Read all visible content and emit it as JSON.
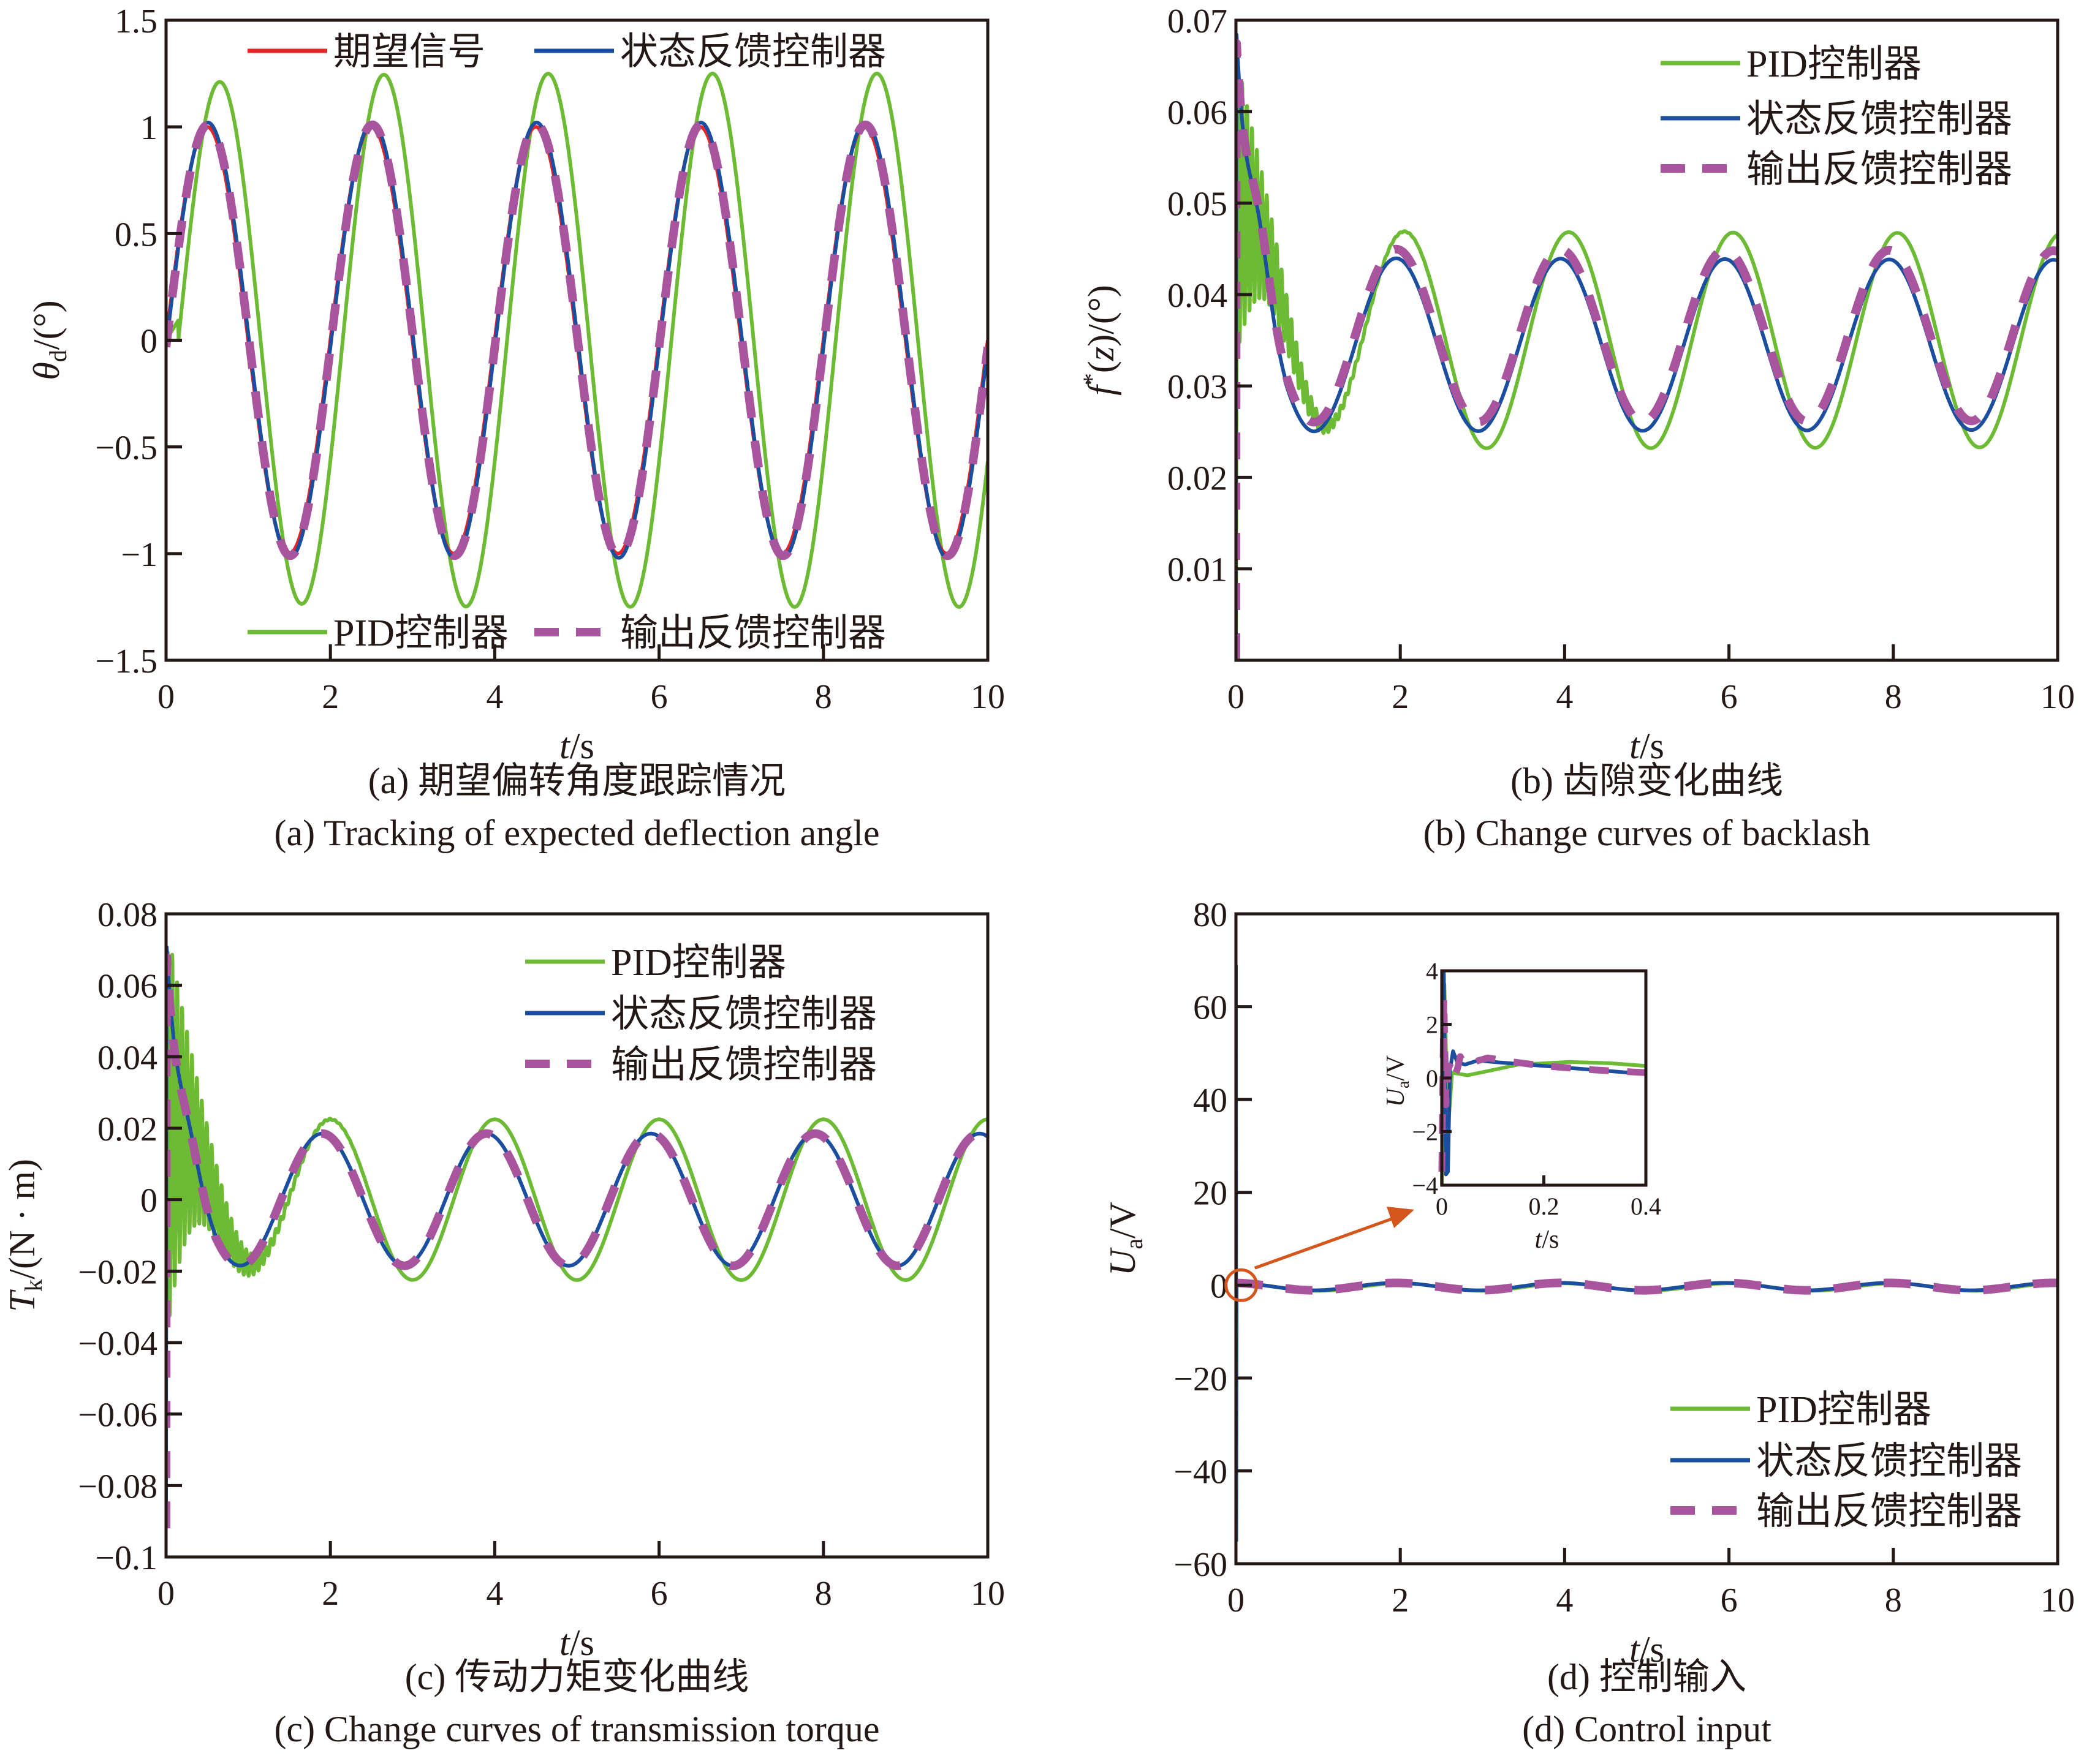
{
  "colors": {
    "desired": "#e3262a",
    "pid": "#6dbb35",
    "state_feedback": "#1c4ea0",
    "output_feedback": "#a8559e",
    "axis": "#231815",
    "annotation": "#d4561c"
  },
  "legend_labels": {
    "desired": "期望信号",
    "pid": "PID控制器",
    "state_feedback": "状态反馈控制器",
    "output_feedback": "输出反馈控制器"
  },
  "chart_data": [
    {
      "id": "a",
      "type": "line",
      "caption_cn": "(a) 期望偏转角度跟踪情况",
      "caption_en": "(a) Tracking of expected deflection angle",
      "xlabel": "t/s",
      "ylabel": "θd/(°)",
      "ylabel_main": "θ",
      "ylabel_sub": "d",
      "ylabel_rest": "/(°)",
      "xlim": [
        0,
        10
      ],
      "ylim": [
        -1.5,
        1.5
      ],
      "xticks": [
        0,
        2,
        4,
        6,
        8,
        10
      ],
      "xtick_labels": [
        "0",
        "2",
        "4",
        "6",
        "8",
        "10"
      ],
      "yticks": [
        -1.5,
        -1,
        -0.5,
        0,
        0.5,
        1,
        1.5
      ],
      "ytick_labels": [
        "−1.5",
        "−1",
        "−0.5",
        "0",
        "0.5",
        "1",
        "1.5"
      ],
      "grid": false,
      "legend_placement": "top and bottom rows inside axes",
      "legend_rows": [
        [
          "desired",
          "state_feedback"
        ],
        [
          "pid",
          "output_feedback"
        ]
      ],
      "series": [
        {
          "key": "pid",
          "name": "PID控制器",
          "style": "solid",
          "model": {
            "kind": "sine",
            "amplitude": 1.25,
            "period": 2.0,
            "delay": 0.15,
            "offset": 0,
            "startup_tau": 0.25
          }
        },
        {
          "key": "desired",
          "name": "期望信号",
          "style": "solid",
          "model": {
            "kind": "sine",
            "amplitude": 1.0,
            "period": 2.0,
            "delay": 0,
            "offset": 0
          }
        },
        {
          "key": "state_feedback",
          "name": "状态反馈控制器",
          "style": "solid",
          "model": {
            "kind": "sine",
            "amplitude": 1.02,
            "period": 2.0,
            "delay": 0.01,
            "offset": 0
          }
        },
        {
          "key": "output_feedback",
          "name": "输出反馈控制器",
          "style": "dashed",
          "model": {
            "kind": "sine",
            "amplitude": 1.01,
            "period": 2.0,
            "delay": 0.01,
            "offset": 0
          }
        }
      ]
    },
    {
      "id": "b",
      "type": "line",
      "caption_cn": "(b) 齿隙变化曲线",
      "caption_en": "(b) Change curves of backlash",
      "xlabel": "t/s",
      "ylabel": "f*(z)/(°)",
      "ylabel_main": "f",
      "ylabel_sup": "*",
      "ylabel_rest": "(z)/(°)",
      "xlim": [
        0,
        10
      ],
      "ylim": [
        0,
        0.07
      ],
      "xticks": [
        0,
        2,
        4,
        6,
        8,
        10
      ],
      "xtick_labels": [
        "0",
        "2",
        "4",
        "6",
        "8",
        "10"
      ],
      "yticks": [
        0.01,
        0.02,
        0.03,
        0.04,
        0.05,
        0.06,
        0.07
      ],
      "ytick_labels": [
        "0.01",
        "0.02",
        "0.03",
        "0.04",
        "0.05",
        "0.06",
        "0.07"
      ],
      "grid": false,
      "legend_placement": "top-right",
      "legend_rows": [
        [
          "pid"
        ],
        [
          "state_feedback"
        ],
        [
          "output_feedback"
        ]
      ],
      "series": [
        {
          "key": "pid",
          "name": "PID控制器",
          "style": "solid",
          "model": {
            "kind": "damped_osc_then_sine",
            "offset": 0.035,
            "amplitude_start": 0.0119,
            "amplitude_end": 0.0117,
            "period": 2.0,
            "peak_time": 2.05,
            "initial": 0.05,
            "hf_amplitude": 0.017,
            "hf_period": 0.06,
            "hf_decay": 0.35,
            "rise_time": 0.015
          }
        },
        {
          "key": "state_feedback",
          "name": "状态反馈控制器",
          "style": "solid",
          "model": {
            "kind": "spike_then_sine",
            "offset": 0.0345,
            "amplitude_start": 0.0095,
            "amplitude_end": 0.0093,
            "period": 2.0,
            "peak_time": 1.95,
            "spike_peak": 0.069,
            "spike_time": 0.005,
            "decay": 0.12
          }
        },
        {
          "key": "output_feedback",
          "name": "输出反馈控制器",
          "style": "dashed",
          "model": {
            "kind": "spike_then_sine",
            "offset": 0.0355,
            "amplitude_start": 0.0095,
            "amplitude_end": 0.0093,
            "period": 2.0,
            "peak_time": 1.95,
            "spike_peak": 0.068,
            "spike_time": 0.005,
            "decay": 0.12
          }
        }
      ]
    },
    {
      "id": "c",
      "type": "line",
      "caption_cn": "(c) 传动力矩变化曲线",
      "caption_en": "(c) Change curves of transmission torque",
      "xlabel": "t/s",
      "ylabel": "Tk/(N·m)",
      "ylabel_main": "T",
      "ylabel_sub": "k",
      "ylabel_rest": "/(N · m)",
      "xlim": [
        0,
        10
      ],
      "ylim": [
        -0.1,
        0.08
      ],
      "xticks": [
        0,
        2,
        4,
        6,
        8,
        10
      ],
      "xtick_labels": [
        "0",
        "2",
        "4",
        "6",
        "8",
        "10"
      ],
      "yticks": [
        -0.1,
        -0.08,
        -0.06,
        -0.04,
        -0.02,
        0,
        0.02,
        0.04,
        0.06,
        0.08
      ],
      "ytick_labels": [
        "−0.1",
        "−0.08",
        "−0.06",
        "−0.04",
        "−0.02",
        "0",
        "0.02",
        "0.04",
        "0.06",
        "0.08"
      ],
      "grid": false,
      "legend_placement": "top-right",
      "legend_rows": [
        [
          "pid"
        ],
        [
          "state_feedback"
        ],
        [
          "output_feedback"
        ]
      ],
      "series": [
        {
          "key": "pid",
          "name": "PID控制器",
          "style": "solid",
          "model": {
            "kind": "damped_osc_then_sine",
            "offset": 0,
            "amplitude_start": 0.0225,
            "amplitude_end": 0.0225,
            "period": 2.0,
            "peak_time": 2.0,
            "initial": 0.02,
            "hf_amplitude": 0.06,
            "hf_period": 0.06,
            "hf_decay": 0.35,
            "rise_time": 0.02
          }
        },
        {
          "key": "state_feedback",
          "name": "状态反馈控制器",
          "style": "solid",
          "model": {
            "kind": "spike_then_sine",
            "offset": 0,
            "amplitude_start": 0.0185,
            "amplitude_end": 0.0185,
            "period": 2.0,
            "peak_time": 1.9,
            "spike_peak": 0.072,
            "spike_min": -0.09,
            "spike_time": 0.005,
            "decay": 0.12
          }
        },
        {
          "key": "output_feedback",
          "name": "输出反馈控制器",
          "style": "dashed",
          "model": {
            "kind": "spike_then_sine",
            "offset": 0,
            "amplitude_start": 0.0185,
            "amplitude_end": 0.0185,
            "period": 2.0,
            "peak_time": 1.9,
            "spike_peak": 0.069,
            "spike_min": -0.092,
            "spike_time": 0.005,
            "decay": 0.12
          }
        }
      ]
    },
    {
      "id": "d",
      "type": "line",
      "caption_cn": "(d) 控制输入",
      "caption_en": "(d) Control input",
      "xlabel": "t/s",
      "ylabel": "Ua/V",
      "ylabel_main": "U",
      "ylabel_sub": "a",
      "ylabel_rest": "/V",
      "xlim": [
        0,
        10
      ],
      "ylim": [
        -60,
        80
      ],
      "xticks": [
        0,
        2,
        4,
        6,
        8,
        10
      ],
      "xtick_labels": [
        "0",
        "2",
        "4",
        "6",
        "8",
        "10"
      ],
      "yticks": [
        -60,
        -40,
        -20,
        0,
        20,
        40,
        60,
        80
      ],
      "ytick_labels": [
        "−60",
        "−40",
        "−20",
        "0",
        "20",
        "40",
        "60",
        "80"
      ],
      "grid": false,
      "legend_placement": "bottom-right",
      "legend_rows": [
        [
          "pid"
        ],
        [
          "state_feedback"
        ],
        [
          "output_feedback"
        ]
      ],
      "series": [
        {
          "key": "pid",
          "name": "PID控制器",
          "style": "solid",
          "model": {
            "kind": "small_sine",
            "offset": -0.4,
            "amplitude": 0.8,
            "period": 2.0,
            "peak_time": 2.0
          }
        },
        {
          "key": "state_feedback",
          "name": "状态反馈控制器",
          "style": "solid",
          "model": {
            "kind": "spike_small_sine",
            "offset": -0.3,
            "amplitude": 0.8,
            "period": 2.0,
            "peak_time": 1.95,
            "spike_max": 69,
            "spike_min": -55
          }
        },
        {
          "key": "output_feedback",
          "name": "输出反馈控制器",
          "style": "dashed",
          "model": {
            "kind": "small_sine",
            "offset": -0.3,
            "amplitude": 0.8,
            "period": 2.0,
            "peak_time": 1.95
          }
        }
      ],
      "annotation": {
        "type": "circle-with-arrow",
        "circle_center": [
          0.05,
          0
        ],
        "target": "inset"
      },
      "inset": {
        "xlabel": "t/s",
        "ylabel": "Ua/V",
        "ylabel_main": "U",
        "ylabel_sub": "a",
        "ylabel_rest": "/V",
        "xlim": [
          0,
          0.4
        ],
        "ylim": [
          -4,
          4
        ],
        "xticks": [
          0,
          0.2,
          0.4
        ],
        "xtick_labels": [
          "0",
          "0.2",
          "0.4"
        ],
        "yticks": [
          -4,
          -2,
          0,
          2,
          4
        ],
        "ytick_labels": [
          "−4",
          "−2",
          "0",
          "2",
          "4"
        ],
        "series": [
          {
            "key": "pid",
            "points": [
              [
                0.0,
                -4
              ],
              [
                0.005,
                3.5
              ],
              [
                0.012,
                -2
              ],
              [
                0.02,
                0.2
              ],
              [
                0.05,
                0.1
              ],
              [
                0.1,
                0.3
              ],
              [
                0.15,
                0.5
              ],
              [
                0.25,
                0.6
              ],
              [
                0.33,
                0.55
              ],
              [
                0.4,
                0.45
              ]
            ]
          },
          {
            "key": "state_feedback",
            "points": [
              [
                0.0,
                4
              ],
              [
                0.004,
                4
              ],
              [
                0.008,
                -3.6
              ],
              [
                0.012,
                -3.5
              ],
              [
                0.016,
                0.3
              ],
              [
                0.022,
                1.0
              ],
              [
                0.03,
                0.6
              ],
              [
                0.045,
                0.5
              ],
              [
                0.07,
                0.65
              ],
              [
                0.1,
                0.6
              ],
              [
                0.2,
                0.45
              ],
              [
                0.3,
                0.3
              ],
              [
                0.4,
                0.15
              ]
            ]
          },
          {
            "key": "output_feedback",
            "points": [
              [
                0.0,
                -3.5
              ],
              [
                0.004,
                3.0
              ],
              [
                0.008,
                -1.0
              ],
              [
                0.012,
                0.3
              ],
              [
                0.018,
                0.6
              ],
              [
                0.024,
                0.1
              ],
              [
                0.03,
                0.3
              ],
              [
                0.036,
                0.8
              ],
              [
                0.045,
                0.5
              ],
              [
                0.09,
                0.75
              ],
              [
                0.14,
                0.6
              ],
              [
                0.2,
                0.45
              ],
              [
                0.3,
                0.3
              ],
              [
                0.4,
                0.2
              ]
            ]
          }
        ]
      }
    }
  ]
}
